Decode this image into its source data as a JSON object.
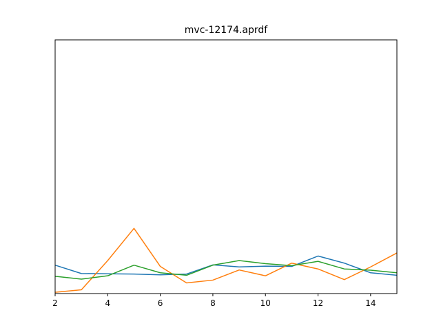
{
  "chart_data": {
    "type": "line",
    "title": "mvc-12174.aprdf",
    "xlabel": "",
    "ylabel": "",
    "xlim": [
      2,
      15
    ],
    "ylim": [
      0,
      1
    ],
    "grid": false,
    "x_ticks": [
      2,
      4,
      6,
      8,
      10,
      12,
      14
    ],
    "x_tick_labels": [
      "2",
      "4",
      "6",
      "8",
      "10",
      "12",
      "14"
    ],
    "x": [
      2,
      3,
      4,
      5,
      6,
      7,
      8,
      9,
      10,
      11,
      12,
      13,
      14,
      15
    ],
    "series": [
      {
        "color": "#1f77b4",
        "values": [
          0.112,
          0.079,
          0.078,
          0.077,
          0.074,
          0.077,
          0.113,
          0.105,
          0.108,
          0.107,
          0.148,
          0.12,
          0.082,
          0.072
        ]
      },
      {
        "color": "#ff7f0e",
        "values": [
          0.005,
          0.015,
          0.13,
          0.257,
          0.107,
          0.042,
          0.053,
          0.093,
          0.07,
          0.12,
          0.097,
          0.055,
          0.105,
          0.16
        ]
      },
      {
        "color": "#2ca02c",
        "values": [
          0.068,
          0.057,
          0.07,
          0.112,
          0.082,
          0.072,
          0.112,
          0.13,
          0.118,
          0.11,
          0.127,
          0.097,
          0.092,
          0.082
        ]
      }
    ]
  }
}
